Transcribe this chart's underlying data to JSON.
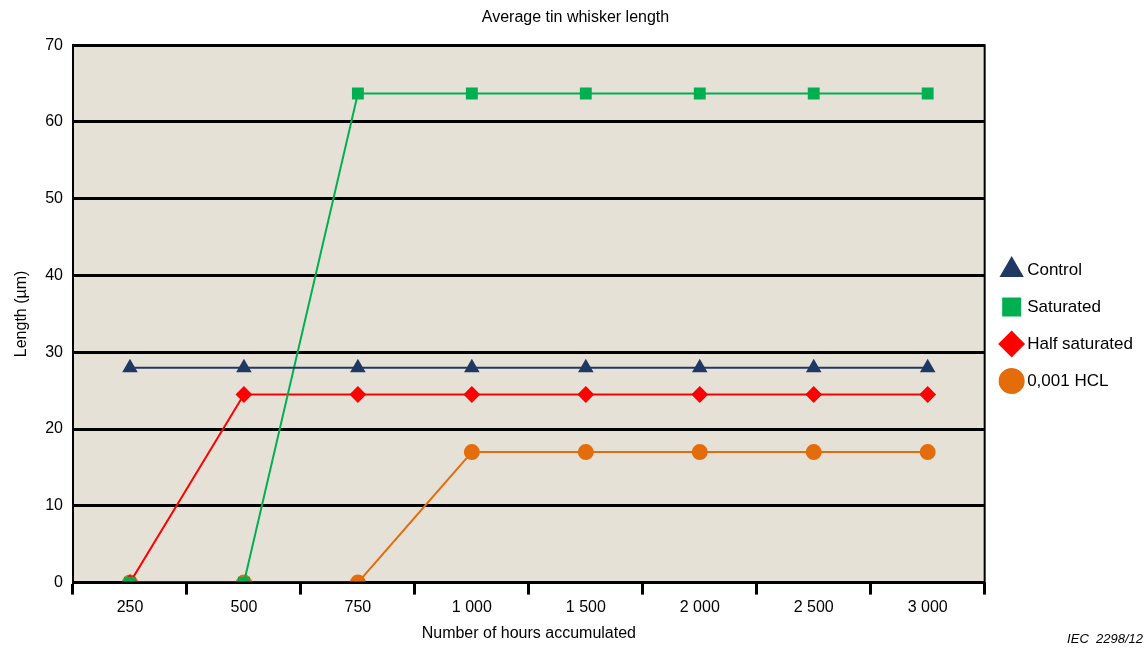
{
  "chart_data": {
    "type": "line",
    "title": "Average tin whisker length",
    "xlabel": "Number of hours accumulated",
    "ylabel": "Length (µm)",
    "categories": [
      "250",
      "500",
      "750",
      "1 000",
      "1 500",
      "2 000",
      "2 500",
      "3 000"
    ],
    "series": [
      {
        "name": "Control",
        "color": "#1f3864",
        "marker": "triangle",
        "values": [
          28,
          28,
          28,
          28,
          28,
          28,
          28,
          28
        ]
      },
      {
        "name": "Saturated",
        "color": "#00b050",
        "marker": "square",
        "values": [
          0,
          0,
          63.7,
          63.7,
          63.7,
          63.7,
          63.7,
          63.7
        ]
      },
      {
        "name": "Half saturated",
        "color": "#ff0000",
        "marker": "diamond",
        "values": [
          0,
          24.5,
          24.5,
          24.5,
          24.5,
          24.5,
          24.5,
          24.5
        ]
      },
      {
        "name": "0,001 HCL",
        "color": "#e46c0a",
        "marker": "circle",
        "values": [
          0,
          0,
          0,
          17,
          17,
          17,
          17,
          17
        ]
      }
    ],
    "ylim": [
      0,
      70
    ],
    "yticks": [
      0,
      10,
      20,
      30,
      40,
      50,
      60,
      70
    ],
    "grid": "y",
    "legend": "right",
    "line_style": "solid",
    "annotations": [
      "IEC  2298/12"
    ]
  }
}
